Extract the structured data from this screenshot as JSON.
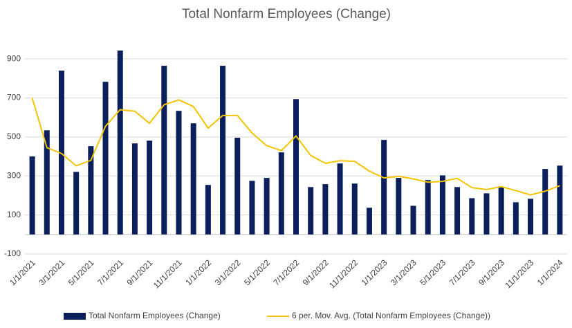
{
  "chart_data": {
    "type": "bar",
    "title": "Total Nonfarm Employees (Change)",
    "categories": [
      "1/1/2021",
      null,
      "3/1/2021",
      null,
      "5/1/2021",
      null,
      "7/1/2021",
      null,
      "9/1/2021",
      null,
      "11/1/2021",
      null,
      "1/1/2022",
      null,
      "3/1/2022",
      null,
      "5/1/2022",
      null,
      "7/1/2022",
      null,
      "9/1/2022",
      null,
      "11/1/2022",
      null,
      "1/1/2023",
      null,
      "3/1/2023",
      null,
      "5/1/2023",
      null,
      "7/1/2023",
      null,
      "9/1/2023",
      null,
      "11/1/2023",
      null,
      "1/1/2024"
    ],
    "series": [
      {
        "name": "Total Nonfarm Employees (Change)",
        "color": "#0b1f5c",
        "type": "bar",
        "values": [
          400,
          534,
          840,
          321,
          453,
          783,
          943,
          467,
          481,
          865,
          634,
          570,
          254,
          865,
          496,
          275,
          290,
          421,
          694,
          243,
          258,
          364,
          261,
          137,
          485,
          290,
          147,
          279,
          303,
          243,
          186,
          211,
          243,
          165,
          183,
          336,
          353
        ]
      },
      {
        "name": "6 per. Mov. Avg. (Total Nonfarm Employees (Change))",
        "color": "#f5c400",
        "type": "line",
        "values": [
          700,
          445,
          415,
          352,
          380,
          555,
          640,
          632,
          570,
          665,
          690,
          656,
          545,
          610,
          610,
          520,
          455,
          430,
          505,
          405,
          365,
          378,
          375,
          325,
          290,
          298,
          285,
          268,
          272,
          288,
          240,
          230,
          245,
          225,
          203,
          222,
          250
        ]
      }
    ],
    "ylim": [
      -100,
      1000
    ],
    "yticks": [
      -100,
      100,
      300,
      500,
      700,
      900
    ],
    "grid": true,
    "legend": "bottom"
  }
}
